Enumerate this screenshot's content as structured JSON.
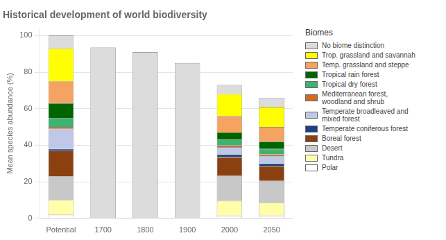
{
  "chart_data": {
    "type": "bar",
    "title": "Historical development of world biodiversity",
    "ylabel": "Mean species abundance (%)",
    "legend_title": "Biomes",
    "categories": [
      "Potential",
      "1700",
      "1800",
      "1900",
      "2000",
      "2050"
    ],
    "stacked": true,
    "grid": true,
    "legend": "right",
    "ylim": [
      0,
      104
    ],
    "yticks": [
      0,
      20,
      40,
      60,
      80,
      100
    ],
    "series": [
      {
        "name": "Polar",
        "color": "#ffffff",
        "values": [
          2,
          0,
          0,
          0,
          1.5,
          1.5
        ]
      },
      {
        "name": "Tundra",
        "color": "#ffffaa",
        "values": [
          8,
          0,
          0,
          0,
          8,
          7
        ]
      },
      {
        "name": "Desert",
        "color": "#c8c8c8",
        "values": [
          13,
          0,
          0,
          0,
          14,
          12
        ]
      },
      {
        "name": "Boreal forest",
        "color": "#8B4010",
        "values": [
          14,
          0,
          0,
          0,
          10,
          8
        ]
      },
      {
        "name": "Temperate coniferous forest",
        "color": "#1e4080",
        "values": [
          1,
          0,
          0,
          0,
          1.5,
          1.5
        ]
      },
      {
        "name": "Temperate broadleaved and\nmixed forest",
        "color": "#c0c8e8",
        "values": [
          11,
          0,
          0,
          0,
          4,
          4
        ]
      },
      {
        "name": "Mediterranean forest,\nwoodland and shrub",
        "color": "#d2691e",
        "values": [
          1,
          0,
          0,
          0,
          1,
          1
        ]
      },
      {
        "name": "Tropical dry forest",
        "color": "#3cb371",
        "values": [
          5,
          0,
          0,
          0,
          3,
          3
        ]
      },
      {
        "name": "Tropical rain forest",
        "color": "#006400",
        "values": [
          8,
          0,
          0,
          0,
          4,
          4
        ]
      },
      {
        "name": "Temp. grassland and steppe",
        "color": "#f4a460",
        "values": [
          12,
          0,
          0,
          0,
          9,
          8
        ]
      },
      {
        "name": "Trop. grassland and savannah",
        "color": "#ffff00",
        "values": [
          18,
          0,
          0,
          0,
          12,
          11
        ]
      },
      {
        "name": "No biome distinction",
        "color": "#dcdcdc",
        "values": [
          7,
          93.5,
          91,
          85,
          5,
          5
        ]
      }
    ]
  }
}
